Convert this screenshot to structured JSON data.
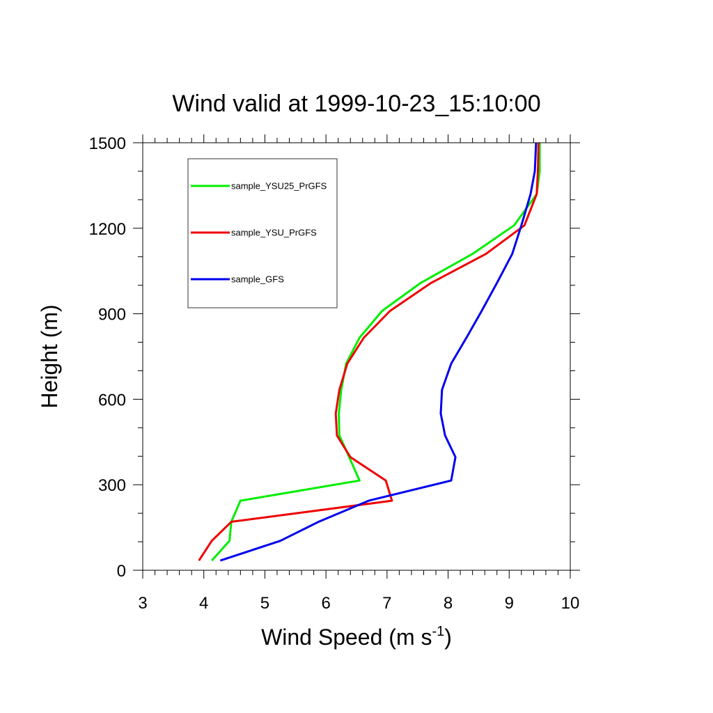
{
  "chart_data": {
    "type": "line",
    "title": "Wind valid at 1999-10-23_15:10:00",
    "xlabel": "Wind Speed (m s",
    "xlabel_superscript": "-1",
    "xlabel_suffix": ")",
    "ylabel": "Height (m)",
    "xlim": [
      3,
      10
    ],
    "ylim": [
      0,
      1500
    ],
    "x_ticks": [
      3,
      4,
      5,
      6,
      7,
      8,
      9,
      10
    ],
    "y_ticks": [
      0,
      300,
      600,
      900,
      1200,
      1500
    ],
    "grid": false,
    "legend_position": "top-left",
    "series": [
      {
        "name": "sample_YSU25_PrGFS",
        "color": "#00ee00",
        "points": [
          [
            4.13,
            34
          ],
          [
            4.42,
            103
          ],
          [
            4.45,
            170
          ],
          [
            4.6,
            244
          ],
          [
            6.55,
            315
          ],
          [
            6.38,
            397
          ],
          [
            6.22,
            473
          ],
          [
            6.21,
            550
          ],
          [
            6.25,
            633
          ],
          [
            6.33,
            725
          ],
          [
            6.55,
            816
          ],
          [
            6.92,
            910
          ],
          [
            7.55,
            1008
          ],
          [
            8.4,
            1110
          ],
          [
            9.08,
            1210
          ],
          [
            9.45,
            1320
          ],
          [
            9.5,
            1400
          ],
          [
            9.5,
            1500
          ]
        ]
      },
      {
        "name": "sample_YSU_PrGFS",
        "color": "#ee0000",
        "points": [
          [
            3.92,
            34
          ],
          [
            4.13,
            103
          ],
          [
            4.45,
            170
          ],
          [
            7.08,
            244
          ],
          [
            6.98,
            315
          ],
          [
            6.4,
            397
          ],
          [
            6.18,
            473
          ],
          [
            6.16,
            550
          ],
          [
            6.22,
            633
          ],
          [
            6.35,
            725
          ],
          [
            6.62,
            816
          ],
          [
            7.05,
            910
          ],
          [
            7.72,
            1008
          ],
          [
            8.62,
            1110
          ],
          [
            9.25,
            1210
          ],
          [
            9.45,
            1320
          ],
          [
            9.47,
            1400
          ],
          [
            9.48,
            1500
          ]
        ]
      },
      {
        "name": "sample_GFS",
        "color": "#0000ee",
        "points": [
          [
            4.27,
            34
          ],
          [
            5.25,
            103
          ],
          [
            5.88,
            170
          ],
          [
            6.7,
            244
          ],
          [
            8.05,
            315
          ],
          [
            8.12,
            397
          ],
          [
            7.95,
            473
          ],
          [
            7.88,
            550
          ],
          [
            7.9,
            633
          ],
          [
            8.05,
            725
          ],
          [
            8.3,
            816
          ],
          [
            8.55,
            910
          ],
          [
            8.8,
            1008
          ],
          [
            9.05,
            1110
          ],
          [
            9.2,
            1210
          ],
          [
            9.35,
            1320
          ],
          [
            9.42,
            1400
          ],
          [
            9.44,
            1500
          ]
        ]
      }
    ]
  }
}
